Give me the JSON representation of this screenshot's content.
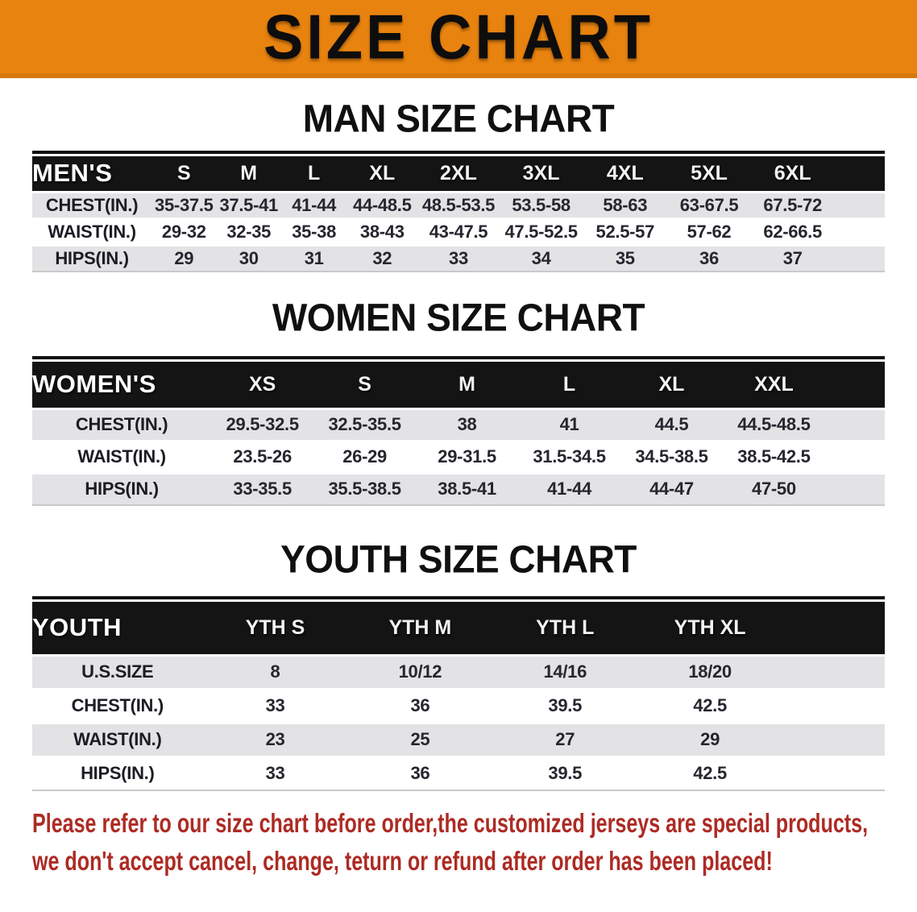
{
  "banner": {
    "title": "SIZE CHART"
  },
  "colors": {
    "banner_orange": "#E8830F",
    "header_black": "#141414",
    "row_gray": "#E3E2E5",
    "disclaimer_red": "#AD2B24"
  },
  "sections": {
    "men": {
      "title": "MAN SIZE CHART",
      "group_label": "MEN'S",
      "columns": [
        "S",
        "M",
        "L",
        "XL",
        "2XL",
        "3XL",
        "4XL",
        "5XL",
        "6XL"
      ],
      "rows": [
        {
          "label": "CHEST(IN.)",
          "values": [
            "35-37.5",
            "37.5-41",
            "41-44",
            "44-48.5",
            "48.5-53.5",
            "53.5-58",
            "58-63",
            "63-67.5",
            "67.5-72"
          ]
        },
        {
          "label": "WAIST(IN.)",
          "values": [
            "29-32",
            "32-35",
            "35-38",
            "38-43",
            "43-47.5",
            "47.5-52.5",
            "52.5-57",
            "57-62",
            "62-66.5"
          ]
        },
        {
          "label": "HIPS(IN.)",
          "values": [
            "29",
            "30",
            "31",
            "32",
            "33",
            "34",
            "35",
            "36",
            "37"
          ]
        }
      ]
    },
    "women": {
      "title": "WOMEN SIZE CHART",
      "group_label": "WOMEN'S",
      "columns": [
        "XS",
        "S",
        "M",
        "L",
        "XL",
        "XXL"
      ],
      "rows": [
        {
          "label": "CHEST(IN.)",
          "values": [
            "29.5-32.5",
            "32.5-35.5",
            "38",
            "41",
            "44.5",
            "44.5-48.5"
          ]
        },
        {
          "label": "WAIST(IN.)",
          "values": [
            "23.5-26",
            "26-29",
            "29-31.5",
            "31.5-34.5",
            "34.5-38.5",
            "38.5-42.5"
          ]
        },
        {
          "label": "HIPS(IN.)",
          "values": [
            "33-35.5",
            "35.5-38.5",
            "38.5-41",
            "41-44",
            "44-47",
            "47-50"
          ]
        }
      ]
    },
    "youth": {
      "title": "YOUTH SIZE CHART",
      "group_label": "YOUTH",
      "columns": [
        "YTH S",
        "YTH M",
        "YTH L",
        "YTH XL"
      ],
      "rows": [
        {
          "label": "U.S.SIZE",
          "values": [
            "8",
            "10/12",
            "14/16",
            "18/20"
          ]
        },
        {
          "label": "CHEST(IN.)",
          "values": [
            "33",
            "36",
            "39.5",
            "42.5"
          ]
        },
        {
          "label": "WAIST(IN.)",
          "values": [
            "23",
            "25",
            "27",
            "29"
          ]
        },
        {
          "label": "HIPS(IN.)",
          "values": [
            "33",
            "36",
            "39.5",
            "42.5"
          ]
        }
      ]
    }
  },
  "disclaimer": {
    "line1": "Please refer to our size chart before order,the customized jerseys are special products,",
    "line2": "we don't accept cancel, change, teturn or refund after order has been placed!"
  }
}
